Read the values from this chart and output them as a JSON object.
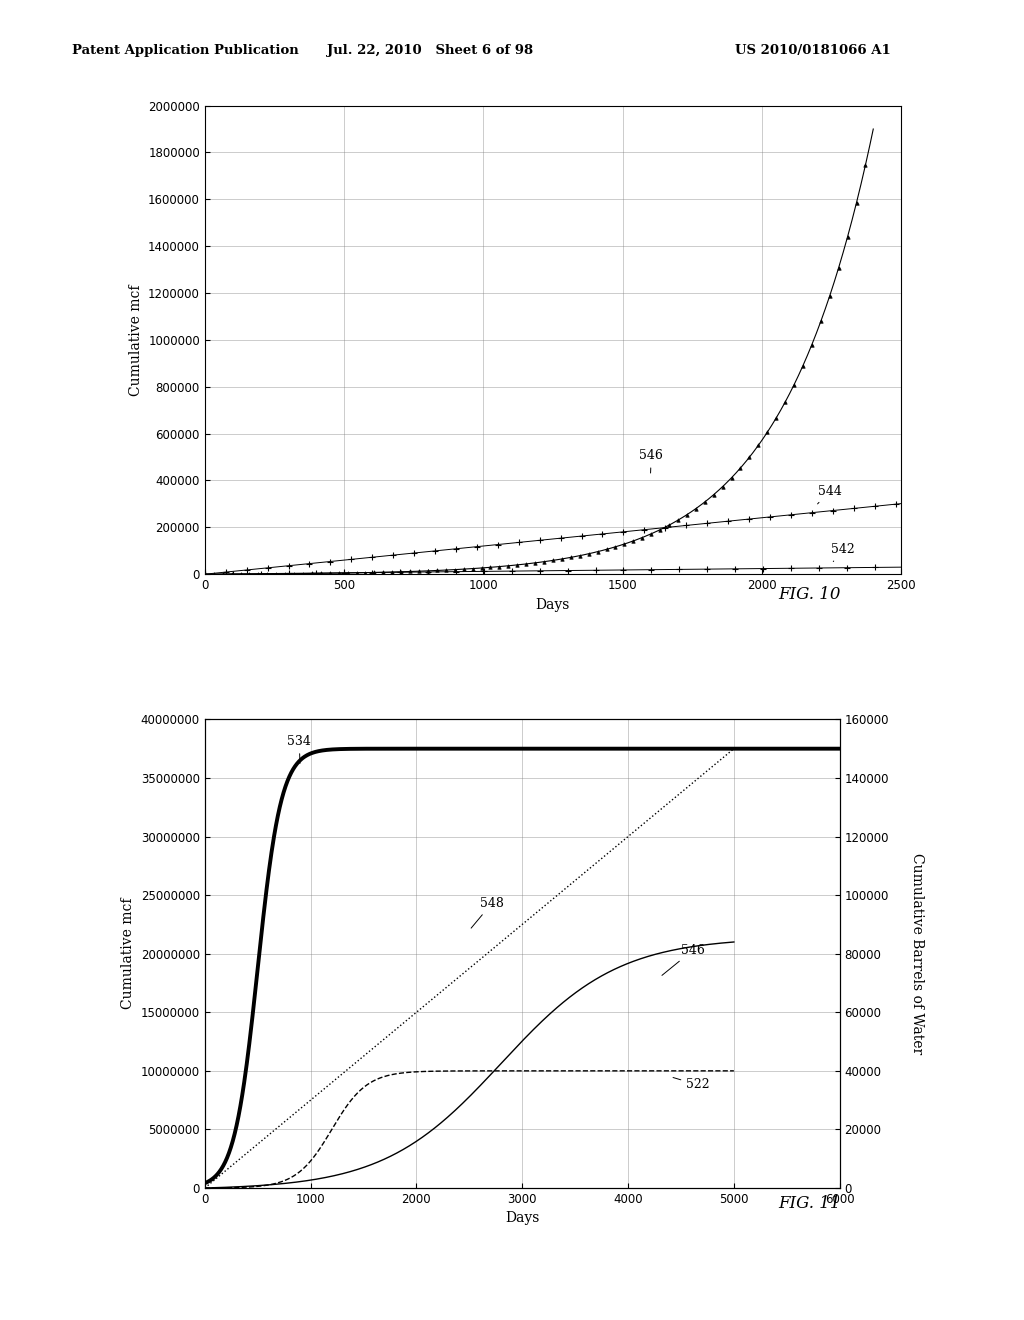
{
  "header_left": "Patent Application Publication",
  "header_center": "Jul. 22, 2010   Sheet 6 of 98",
  "header_right": "US 2010/0181066 A1",
  "fig10": {
    "title": "FIG. 10",
    "xlabel": "Days",
    "ylabel": "Cumulative mcf",
    "xlim": [
      0,
      2500
    ],
    "ylim": [
      0,
      2000000
    ],
    "yticks": [
      0,
      200000,
      400000,
      600000,
      800000,
      1000000,
      1200000,
      1400000,
      1600000,
      1800000,
      2000000
    ],
    "xticks": [
      0,
      500,
      1000,
      1500,
      2000,
      2500
    ]
  },
  "fig11": {
    "title": "FIG. 11",
    "xlabel": "Days",
    "ylabel": "Cumulative mcf",
    "ylabel_right": "Cumulative Barrels of Water",
    "xlim": [
      0,
      6000
    ],
    "ylim_left": [
      0,
      40000000
    ],
    "ylim_right": [
      0,
      160000
    ],
    "yticks_left": [
      0,
      5000000,
      10000000,
      15000000,
      20000000,
      25000000,
      30000000,
      35000000,
      40000000
    ],
    "yticks_right": [
      0,
      20000,
      40000,
      60000,
      80000,
      100000,
      120000,
      140000,
      160000
    ],
    "xticks": [
      0,
      1000,
      2000,
      3000,
      4000,
      5000,
      6000
    ]
  }
}
